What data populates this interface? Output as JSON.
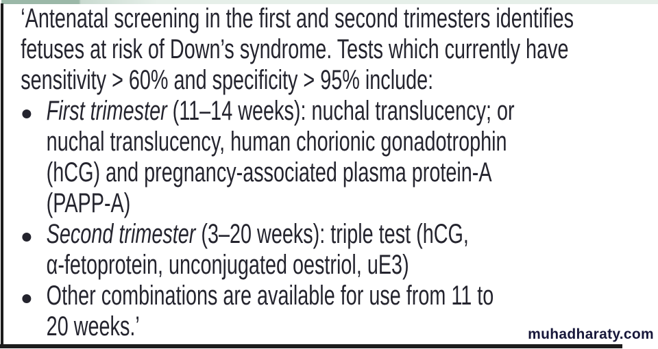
{
  "theme": {
    "background": "#ffffff",
    "text_color": "#24242e",
    "border_color": "#1c1c1c",
    "strip_dark": "#9bb8a8",
    "strip_mid": "#c9dad0",
    "strip_light": "#e6efe9",
    "watermark_color": "#17173a"
  },
  "quote": {
    "lines": [
      {
        "bullet": false,
        "indent": "none",
        "segments": [
          {
            "text": "‘Antenatal screening in the first and second trimesters identifies",
            "italic": false
          }
        ]
      },
      {
        "bullet": false,
        "indent": "none",
        "segments": [
          {
            "text": "fetuses at risk of Down’s syndrome. Tests which currently have",
            "italic": false
          }
        ]
      },
      {
        "bullet": false,
        "indent": "none",
        "segments": [
          {
            "text": "sensitivity > 60% and specificity > 95% include:",
            "italic": false
          }
        ]
      },
      {
        "bullet": true,
        "indent": "list",
        "segments": [
          {
            "text": "First trimester",
            "italic": true
          },
          {
            "text": " (11–14 weeks): nuchal translucency; or",
            "italic": false
          }
        ]
      },
      {
        "bullet": false,
        "indent": "list",
        "segments": [
          {
            "text": "nuchal translucency, human chorionic gonadotrophin",
            "italic": false
          }
        ]
      },
      {
        "bullet": false,
        "indent": "list",
        "segments": [
          {
            "text": "(hCG) and pregnancy-associated plasma protein-A",
            "italic": false
          }
        ]
      },
      {
        "bullet": false,
        "indent": "list",
        "segments": [
          {
            "text": "(PAPP-A)",
            "italic": false
          }
        ]
      },
      {
        "bullet": true,
        "indent": "list",
        "segments": [
          {
            "text": "Second trimester",
            "italic": true
          },
          {
            "text": " (3–20 weeks): triple test (hCG,",
            "italic": false
          }
        ]
      },
      {
        "bullet": false,
        "indent": "list",
        "segments": [
          {
            "text": "α-fetoprotein, unconjugated oestriol, uE3)",
            "italic": false
          }
        ]
      },
      {
        "bullet": true,
        "indent": "list",
        "segments": [
          {
            "text": "Other combinations are available for use from 11 to",
            "italic": false
          }
        ]
      },
      {
        "bullet": false,
        "indent": "list",
        "segments": [
          {
            "text": "20 weeks.’",
            "italic": false
          }
        ]
      }
    ]
  },
  "watermark": {
    "text": "muhadharaty.com"
  }
}
